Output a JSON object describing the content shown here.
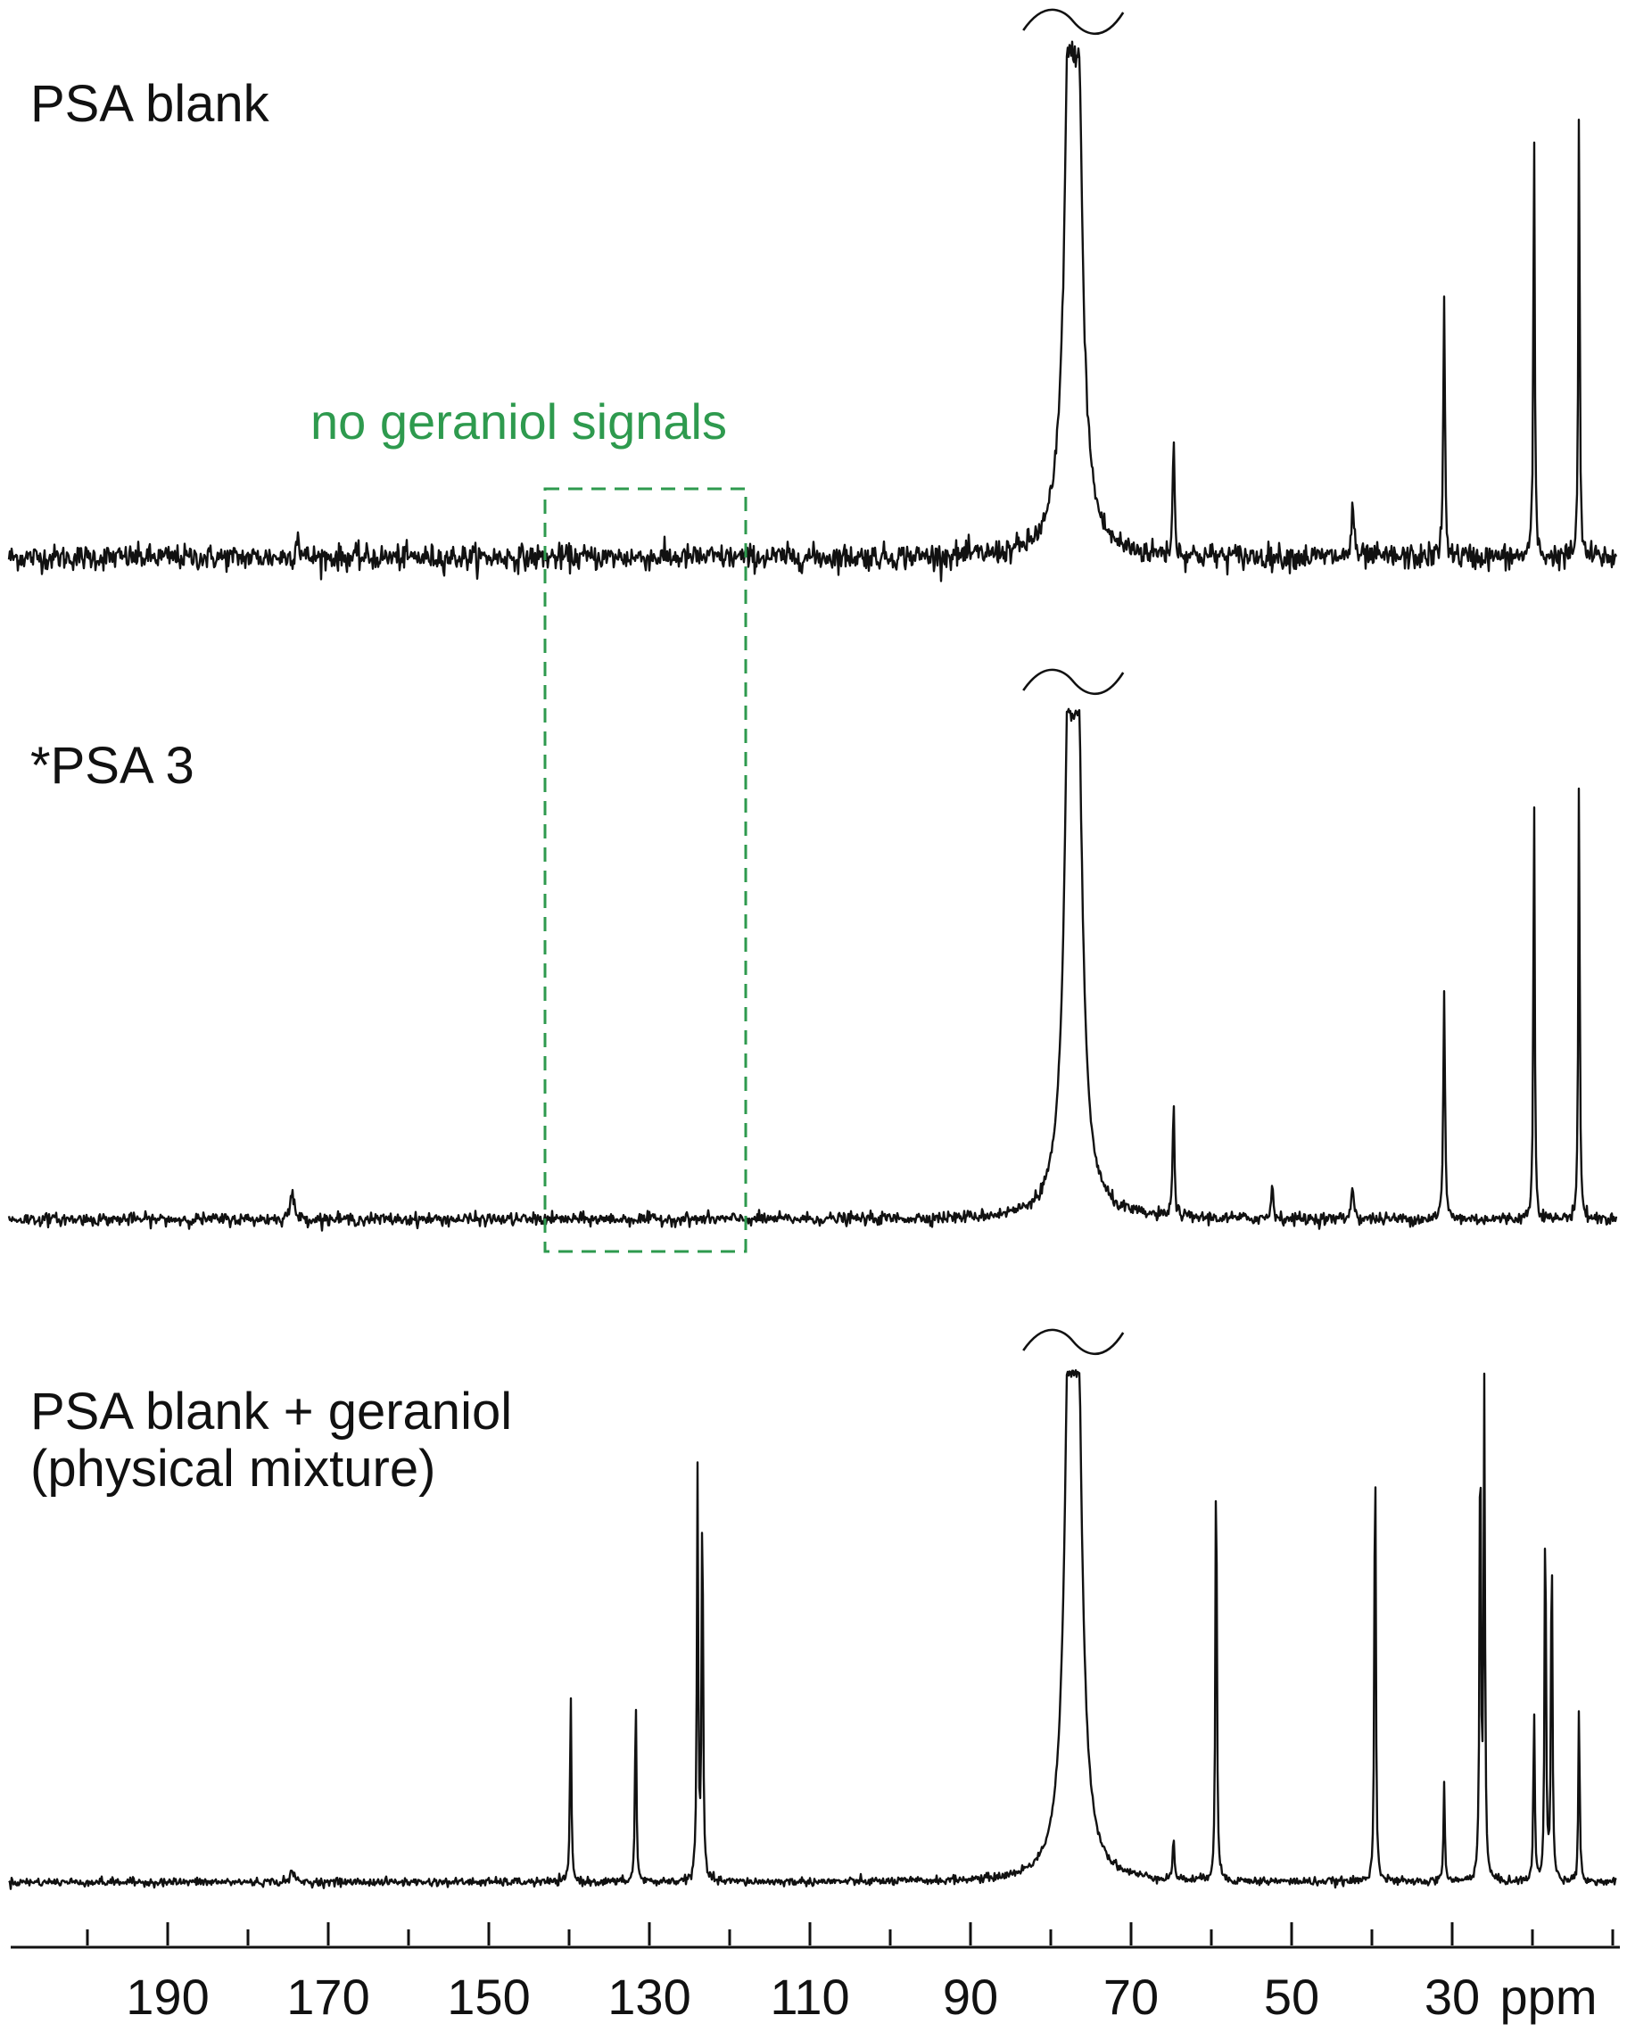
{
  "chart_data": {
    "type": "line",
    "title": "",
    "xlabel": "ppm",
    "ylabel": "",
    "x_reversed": true,
    "xlim": [
      200,
      0
    ],
    "grid": false,
    "x_ticks": [
      190,
      170,
      150,
      130,
      110,
      90,
      70,
      50,
      30
    ],
    "x_tick_labels": [
      "190",
      "170",
      "150",
      "130",
      "110",
      "90",
      "70",
      "50",
      "30"
    ],
    "annotation": {
      "text": "no geraniol signals",
      "color": "#2e9a4e",
      "x_range_ppm": [
        143,
        118
      ]
    },
    "series": [
      {
        "name": "PSA blank",
        "peaks": [
          {
            "ppm": 77.6,
            "height": 1.0,
            "width": 1.4,
            "truncated": true
          },
          {
            "ppm": 76.8,
            "height": 1.0,
            "width": 1.4,
            "truncated": true
          },
          {
            "ppm": 64.7,
            "height": 0.25,
            "width": 0.25
          },
          {
            "ppm": 42.4,
            "height": 0.12,
            "width": 0.3
          },
          {
            "ppm": 31.0,
            "height": 0.51,
            "width": 0.25
          },
          {
            "ppm": 19.8,
            "height": 0.88,
            "width": 0.2
          },
          {
            "ppm": 14.2,
            "height": 0.9,
            "width": 0.2
          },
          {
            "ppm": 173.8,
            "height": 0.05,
            "width": 0.4
          }
        ],
        "noise": 0.025
      },
      {
        "name": "*PSA 3",
        "peaks": [
          {
            "ppm": 77.6,
            "height": 1.0,
            "width": 1.4,
            "truncated": true
          },
          {
            "ppm": 76.8,
            "height": 1.0,
            "width": 1.4,
            "truncated": true
          },
          {
            "ppm": 64.7,
            "height": 0.24,
            "width": 0.25
          },
          {
            "ppm": 52.4,
            "height": 0.07,
            "width": 0.3
          },
          {
            "ppm": 42.4,
            "height": 0.07,
            "width": 0.35
          },
          {
            "ppm": 31.0,
            "height": 0.45,
            "width": 0.25
          },
          {
            "ppm": 19.8,
            "height": 0.87,
            "width": 0.2
          },
          {
            "ppm": 14.2,
            "height": 0.9,
            "width": 0.2
          },
          {
            "ppm": 174.5,
            "height": 0.05,
            "width": 0.6
          }
        ],
        "noise": 0.012
      },
      {
        "name": "PSA blank + geraniol\n(physical mixture)",
        "peaks": [
          {
            "ppm": 77.6,
            "height": 1.0,
            "width": 1.4,
            "truncated": true
          },
          {
            "ppm": 76.8,
            "height": 1.0,
            "width": 1.4,
            "truncated": true
          },
          {
            "ppm": 139.8,
            "height": 0.38,
            "width": 0.2
          },
          {
            "ppm": 131.7,
            "height": 0.38,
            "width": 0.2
          },
          {
            "ppm": 124.0,
            "height": 0.8,
            "width": 0.2
          },
          {
            "ppm": 123.4,
            "height": 0.79,
            "width": 0.2
          },
          {
            "ppm": 64.7,
            "height": 0.08,
            "width": 0.25
          },
          {
            "ppm": 59.4,
            "height": 0.9,
            "width": 0.2
          },
          {
            "ppm": 39.6,
            "height": 0.93,
            "width": 0.2
          },
          {
            "ppm": 31.0,
            "height": 0.2,
            "width": 0.2
          },
          {
            "ppm": 26.5,
            "height": 0.95,
            "width": 0.2
          },
          {
            "ppm": 26.0,
            "height": 0.97,
            "width": 0.2
          },
          {
            "ppm": 19.8,
            "height": 0.34,
            "width": 0.2
          },
          {
            "ppm": 18.4,
            "height": 0.77,
            "width": 0.2
          },
          {
            "ppm": 17.6,
            "height": 0.71,
            "width": 0.2
          },
          {
            "ppm": 14.2,
            "height": 0.35,
            "width": 0.2
          },
          {
            "ppm": 174.5,
            "height": 0.02,
            "width": 0.6
          }
        ],
        "noise": 0.008
      }
    ]
  },
  "labels": {
    "trace1": "PSA blank",
    "trace2": "*PSA 3",
    "trace3_line1": "PSA blank + geraniol",
    "trace3_line2": "(physical mixture)",
    "annotation": "no geraniol signals",
    "unit": "ppm"
  }
}
